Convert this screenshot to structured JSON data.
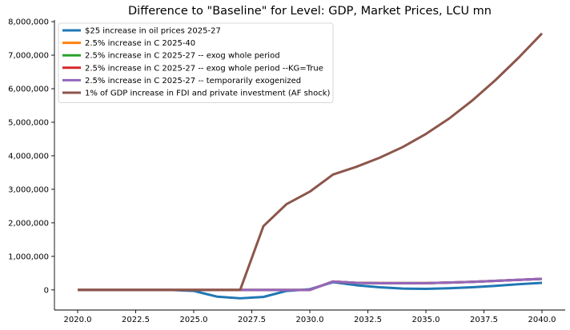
{
  "chart_data": {
    "type": "line",
    "title": "Difference to \"Baseline\" for Level: GDP, Market Prices, LCU mn",
    "xlabel": "",
    "ylabel": "",
    "xlim": [
      2019.0,
      2041.0
    ],
    "ylim": [
      -600000,
      8050000
    ],
    "x_ticks": [
      2020.0,
      2022.5,
      2025.0,
      2027.5,
      2030.0,
      2032.5,
      2035.0,
      2037.5,
      2040.0
    ],
    "x_tick_labels": [
      "2020.0",
      "2022.5",
      "2025.0",
      "2027.5",
      "2030.0",
      "2032.5",
      "2035.0",
      "2037.5",
      "2040.0"
    ],
    "y_ticks": [
      0,
      1000000,
      2000000,
      3000000,
      4000000,
      5000000,
      6000000,
      7000000,
      8000000
    ],
    "y_tick_labels": [
      "0",
      "1,000,000",
      "2,000,000",
      "3,000,000",
      "4,000,000",
      "5,000,000",
      "6,000,000",
      "7,000,000",
      "8,000,000"
    ],
    "legend_position": "top-left",
    "grid": false,
    "x": [
      2020,
      2021,
      2022,
      2023,
      2024,
      2025,
      2026,
      2027,
      2028,
      2029,
      2030,
      2031,
      2032,
      2033,
      2034,
      2035,
      2036,
      2037,
      2038,
      2039,
      2040
    ],
    "series": [
      {
        "name": "$25 increase in oil prices 2025-27",
        "color": "#1f77b4",
        "values": [
          0,
          0,
          0,
          0,
          0,
          -30000,
          -200000,
          -250000,
          -210000,
          -30000,
          20000,
          230000,
          140000,
          80000,
          40000,
          30000,
          50000,
          80000,
          120000,
          170000,
          210000
        ]
      },
      {
        "name": "2.5% increase in C 2025-40",
        "color": "#ff7f0e",
        "values": [
          0,
          0,
          0,
          0,
          0,
          0,
          0,
          0,
          0,
          0,
          0,
          250000,
          210000,
          200000,
          200000,
          200000,
          220000,
          240000,
          270000,
          300000,
          330000
        ]
      },
      {
        "name": "2.5% increase in C 2025-27 -- exog whole period",
        "color": "#2ca02c",
        "values": [
          0,
          0,
          0,
          0,
          0,
          0,
          0,
          0,
          0,
          0,
          0,
          250000,
          210000,
          200000,
          200000,
          200000,
          220000,
          240000,
          270000,
          300000,
          330000
        ]
      },
      {
        "name": "2.5% increase in C 2025-27 -- exog whole period --KG=True",
        "color": "#d62728",
        "values": [
          0,
          0,
          0,
          0,
          0,
          0,
          0,
          0,
          0,
          0,
          0,
          250000,
          210000,
          200000,
          200000,
          200000,
          220000,
          240000,
          270000,
          300000,
          330000
        ]
      },
      {
        "name": "2.5% increase in C 2025-27 -- temporarily exogenized",
        "color": "#9467bd",
        "values": [
          0,
          0,
          0,
          0,
          0,
          0,
          0,
          0,
          0,
          0,
          0,
          250000,
          210000,
          200000,
          200000,
          200000,
          220000,
          240000,
          270000,
          300000,
          330000
        ]
      },
      {
        "name": "1% of GDP increase in FDI and private investment (AF shock)",
        "color": "#8c564b",
        "values": [
          0,
          0,
          0,
          0,
          0,
          0,
          0,
          0,
          1900000,
          2560000,
          2930000,
          3440000,
          3670000,
          3940000,
          4260000,
          4650000,
          5110000,
          5650000,
          6260000,
          6930000,
          7650000
        ]
      }
    ]
  }
}
